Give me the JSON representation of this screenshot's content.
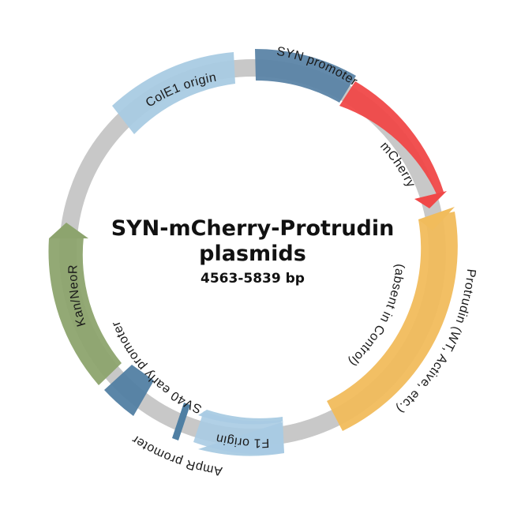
{
  "plasmid": {
    "title_line1": "SYN-mCherry-Protrudin",
    "title_line2": "plasmids",
    "size": "4563-5839 bp"
  },
  "features": {
    "syn_promoter": {
      "label": "SYN promoter",
      "color": "#5b84a6"
    },
    "mcherry": {
      "label": "mCherry",
      "color": "#f04848"
    },
    "protrudin": {
      "label": "Protrudin (WT, Active, etc.)",
      "color": "#f1bc5c"
    },
    "protrudin_note": {
      "label": "(absent in Control)"
    },
    "f1_origin": {
      "label": "F1 origin",
      "color": "#a9cbe3"
    },
    "ampr_promoter": {
      "label": "AmpR promoter",
      "color": "#4f7fa3"
    },
    "sv40_promoter": {
      "label": "SV40 early promoter",
      "color": "#527fa3"
    },
    "kan_neor": {
      "label": "Kan/NeoR",
      "color": "#8da46e"
    },
    "cole1_origin": {
      "label": "ColE1 origin",
      "color": "#a9cbe3"
    }
  },
  "backbone_color": "#c8c8c8"
}
